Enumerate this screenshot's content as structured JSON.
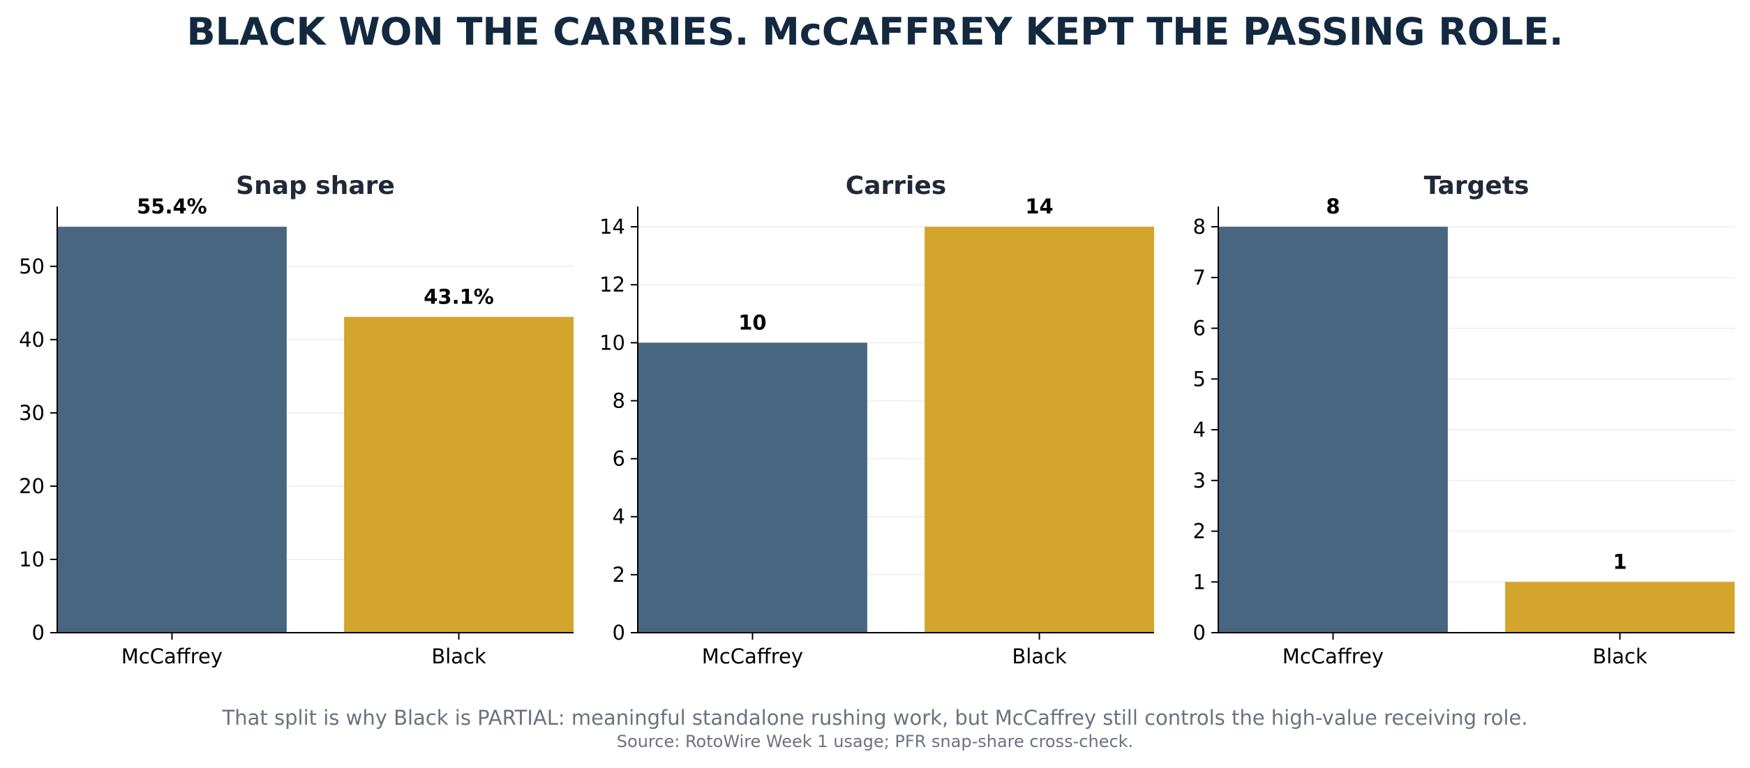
{
  "title": "BLACK WON THE CARRIES. McCAFFREY KEPT THE PASSING ROLE.",
  "caption": "That split is why Black is PARTIAL: meaningful standalone rushing work, but McCaffrey still controls the high-value receiving role.",
  "source": "Source: RotoWire Week 1 usage; PFR snap-share cross-check.",
  "colors": {
    "mccaffrey": "#48667f",
    "black": "#d3a52c",
    "title": "#13293f",
    "panel_title": "#1f2937",
    "muted": "#6b7280",
    "grid": "#f0f0f0"
  },
  "chart_data": [
    {
      "type": "bar",
      "title": "Snap share",
      "categories": [
        "McCaffrey",
        "Black"
      ],
      "values": [
        55.4,
        43.1
      ],
      "labels": [
        "55.4%",
        "43.1%"
      ],
      "yticks": [
        0,
        10,
        20,
        30,
        40,
        50
      ],
      "ylim": [
        0,
        58.17
      ],
      "xlabel": "",
      "ylabel": "",
      "grid": true
    },
    {
      "type": "bar",
      "title": "Carries",
      "categories": [
        "McCaffrey",
        "Black"
      ],
      "values": [
        10,
        14
      ],
      "labels": [
        "10",
        "14"
      ],
      "yticks": [
        0,
        2,
        4,
        6,
        8,
        10,
        12,
        14
      ],
      "ylim": [
        0,
        14.7
      ],
      "xlabel": "",
      "ylabel": "",
      "grid": true
    },
    {
      "type": "bar",
      "title": "Targets",
      "categories": [
        "McCaffrey",
        "Black"
      ],
      "values": [
        8,
        1
      ],
      "labels": [
        "8",
        "1"
      ],
      "yticks": [
        0,
        1,
        2,
        3,
        4,
        5,
        6,
        7,
        8
      ],
      "ylim": [
        0,
        8.4
      ],
      "xlabel": "",
      "ylabel": "",
      "grid": true
    }
  ]
}
